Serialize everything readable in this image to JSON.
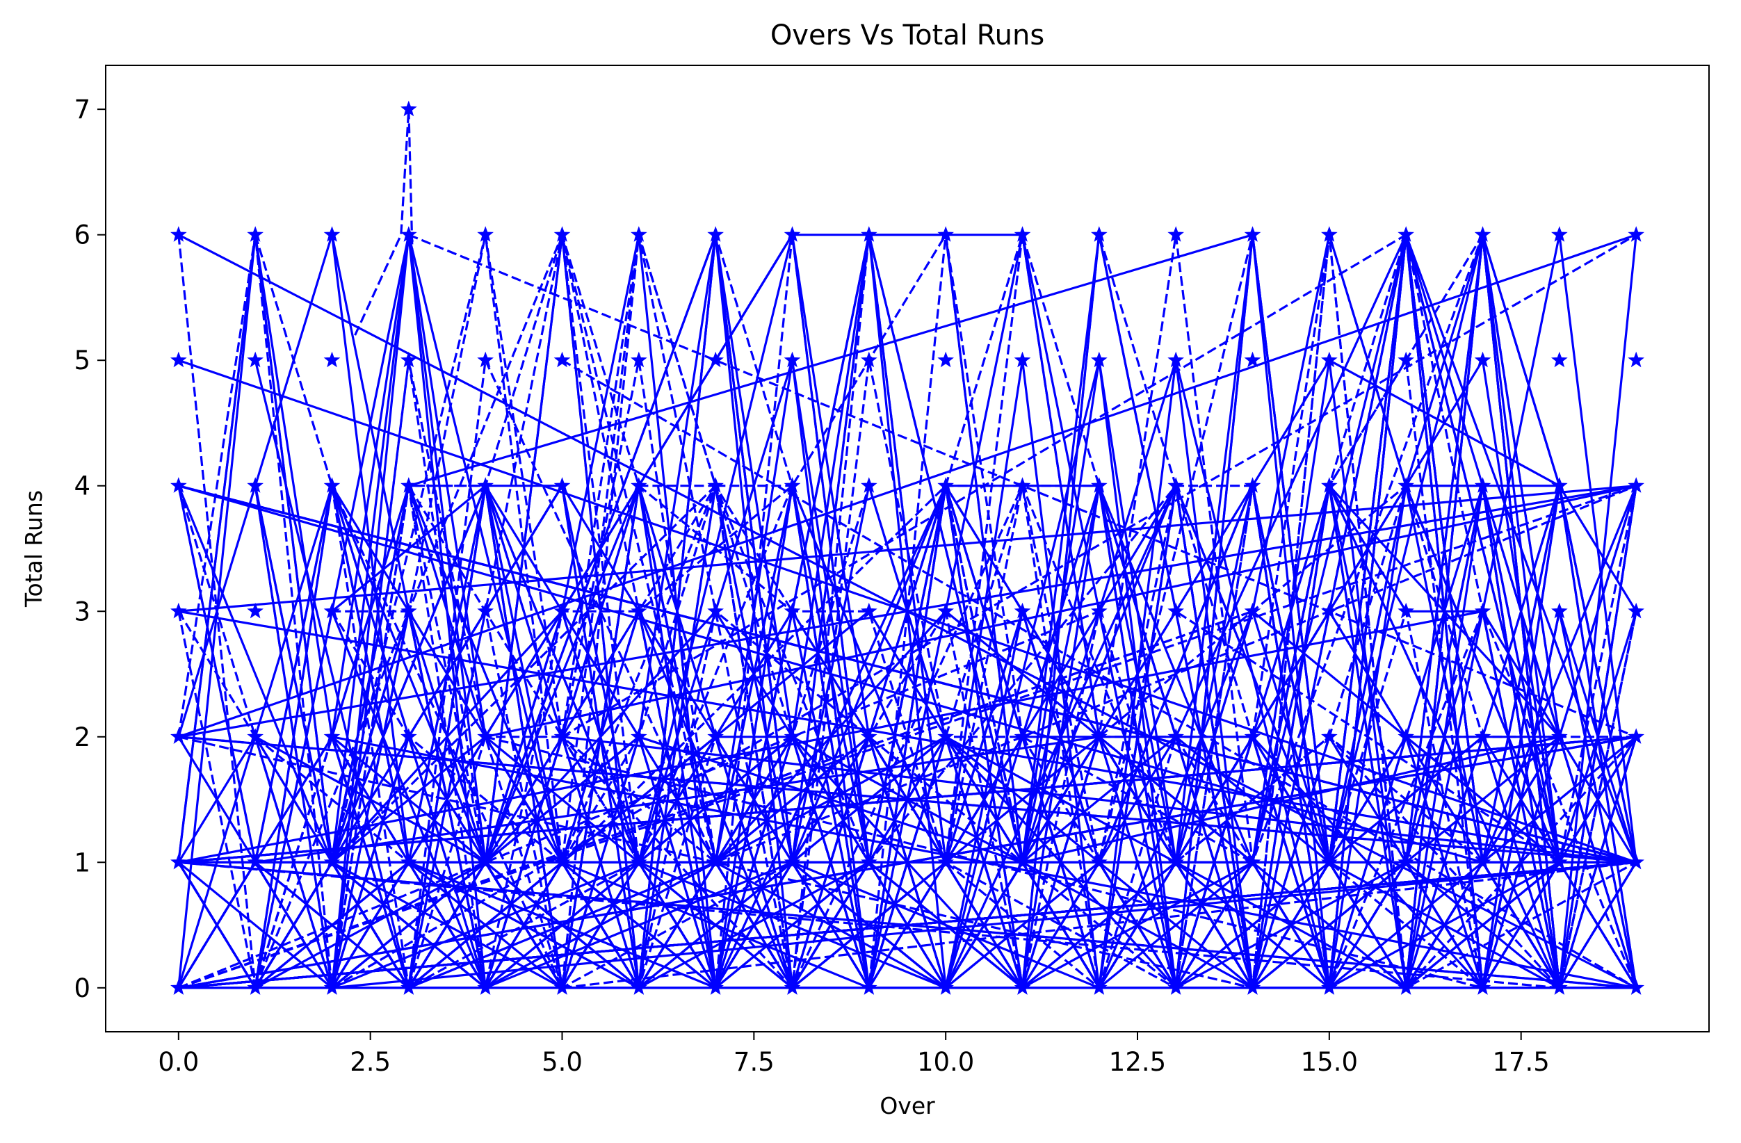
{
  "chart_data": {
    "type": "line",
    "title": "Overs Vs Total Runs",
    "xlabel": "Over",
    "ylabel": "Total Runs",
    "xlim": [
      -0.95,
      19.95
    ],
    "ylim": [
      -0.35,
      7.35
    ],
    "x_ticks": [
      "0.0",
      "2.5",
      "5.0",
      "7.5",
      "10.0",
      "12.5",
      "15.0",
      "17.5"
    ],
    "x_tick_values": [
      0,
      2.5,
      5,
      7.5,
      10,
      12.5,
      15,
      17.5
    ],
    "y_ticks": [
      "0",
      "1",
      "2",
      "3",
      "4",
      "5",
      "6",
      "7"
    ],
    "y_tick_values": [
      0,
      1,
      2,
      3,
      4,
      5,
      6,
      7
    ],
    "grid": false,
    "legend": "none",
    "line_color": "#0000ff",
    "marker": "star",
    "line_styles": [
      "solid",
      "dashed"
    ],
    "overs": [
      0,
      1,
      2,
      3,
      4,
      5,
      6,
      7,
      8,
      9,
      10,
      11,
      12,
      13,
      14,
      15,
      16,
      17,
      18,
      19
    ],
    "run_values": [
      0,
      1,
      2,
      3,
      4,
      5,
      6
    ],
    "max_point": {
      "x": 3,
      "y": 7
    }
  }
}
